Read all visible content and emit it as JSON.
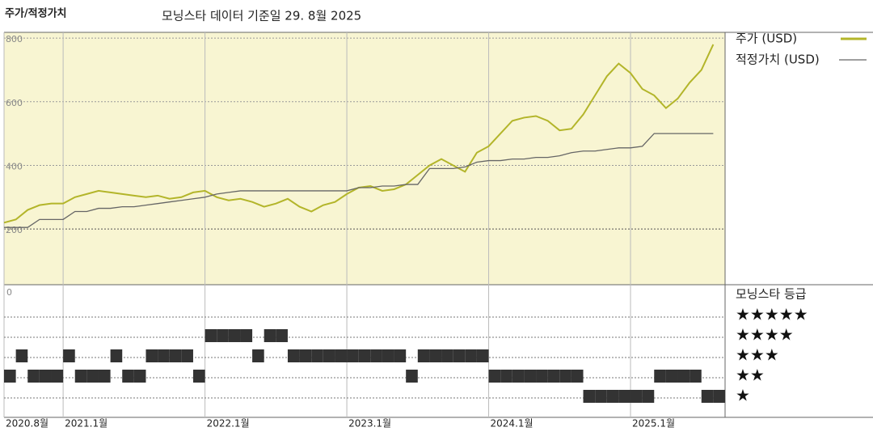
{
  "chart_data": [
    {
      "type": "line",
      "title": "주가/적정가치",
      "subtitle": "모닝스타 데이터 기준일 29. 8월 2025",
      "x": [
        "2020-08",
        "2020-09",
        "2020-10",
        "2020-11",
        "2020-12",
        "2021-01",
        "2021-02",
        "2021-03",
        "2021-04",
        "2021-05",
        "2021-06",
        "2021-07",
        "2021-08",
        "2021-09",
        "2021-10",
        "2021-11",
        "2021-12",
        "2022-01",
        "2022-02",
        "2022-03",
        "2022-04",
        "2022-05",
        "2022-06",
        "2022-07",
        "2022-08",
        "2022-09",
        "2022-10",
        "2022-11",
        "2022-12",
        "2023-01",
        "2023-02",
        "2023-03",
        "2023-04",
        "2023-05",
        "2023-06",
        "2023-07",
        "2023-08",
        "2023-09",
        "2023-10",
        "2023-11",
        "2023-12",
        "2024-01",
        "2024-02",
        "2024-03",
        "2024-04",
        "2024-05",
        "2024-06",
        "2024-07",
        "2024-08",
        "2024-09",
        "2024-10",
        "2024-11",
        "2024-12",
        "2025-01",
        "2025-02",
        "2025-03",
        "2025-04",
        "2025-05",
        "2025-06",
        "2025-07",
        "2025-08"
      ],
      "series": [
        {
          "name": "주가 (USD)",
          "color": "#b3b52a",
          "values": [
            220,
            230,
            260,
            275,
            280,
            280,
            300,
            310,
            320,
            315,
            310,
            305,
            300,
            305,
            295,
            300,
            315,
            320,
            300,
            290,
            295,
            285,
            270,
            280,
            295,
            270,
            255,
            275,
            285,
            310,
            330,
            335,
            320,
            325,
            340,
            370,
            400,
            420,
            400,
            380,
            440,
            460,
            500,
            540,
            550,
            555,
            540,
            510,
            515,
            560,
            620,
            680,
            720,
            690,
            640,
            620,
            580,
            610,
            660,
            700,
            780
          ]
        },
        {
          "name": "적정가치 (USD)",
          "color": "#666666",
          "values": [
            205,
            205,
            205,
            230,
            230,
            230,
            255,
            255,
            265,
            265,
            270,
            270,
            275,
            280,
            285,
            290,
            295,
            300,
            310,
            315,
            320,
            320,
            320,
            320,
            320,
            320,
            320,
            320,
            320,
            320,
            330,
            330,
            335,
            335,
            340,
            340,
            390,
            390,
            390,
            395,
            410,
            415,
            415,
            420,
            420,
            425,
            425,
            430,
            440,
            445,
            445,
            450,
            455,
            455,
            460,
            500,
            500,
            500,
            500,
            500,
            500
          ]
        }
      ],
      "xlim": [
        "2020-08",
        "2025-09"
      ],
      "xticks": [
        {
          "value": "2020-08",
          "label": "2020.8월"
        },
        {
          "value": "2021-01",
          "label": "2021.1월"
        },
        {
          "value": "2022-01",
          "label": "2022.1월"
        },
        {
          "value": "2023-01",
          "label": "2023.1월"
        },
        {
          "value": "2024-01",
          "label": "2024.1월"
        },
        {
          "value": "2025-01",
          "label": "2025.1월"
        }
      ],
      "ylim": [
        25,
        818
      ],
      "yticks": [
        200,
        400,
        600,
        800
      ],
      "grid": true
    },
    {
      "type": "rating",
      "title": "모닝스타 등급",
      "axis_label": "0",
      "color": "#333333",
      "values": [
        2,
        3,
        2,
        2,
        2,
        3,
        2,
        2,
        2,
        3,
        2,
        2,
        3,
        3,
        3,
        3,
        2,
        4,
        4,
        4,
        4,
        3,
        4,
        4,
        3,
        3,
        3,
        3,
        3,
        3,
        3,
        3,
        3,
        3,
        2,
        3,
        3,
        3,
        3,
        3,
        3,
        2,
        2,
        2,
        2,
        2,
        2,
        2,
        2,
        1,
        1,
        1,
        1,
        1,
        1,
        2,
        2,
        2,
        2,
        1,
        1
      ],
      "ylim": [
        -0.04,
        6.52
      ],
      "yticks": [
        {
          "value": 5,
          "label": "★★★★★"
        },
        {
          "value": 4,
          "label": "★★★★"
        },
        {
          "value": 3,
          "label": "★★★"
        },
        {
          "value": 2,
          "label": "★★"
        },
        {
          "value": 1,
          "label": "★"
        }
      ]
    }
  ]
}
